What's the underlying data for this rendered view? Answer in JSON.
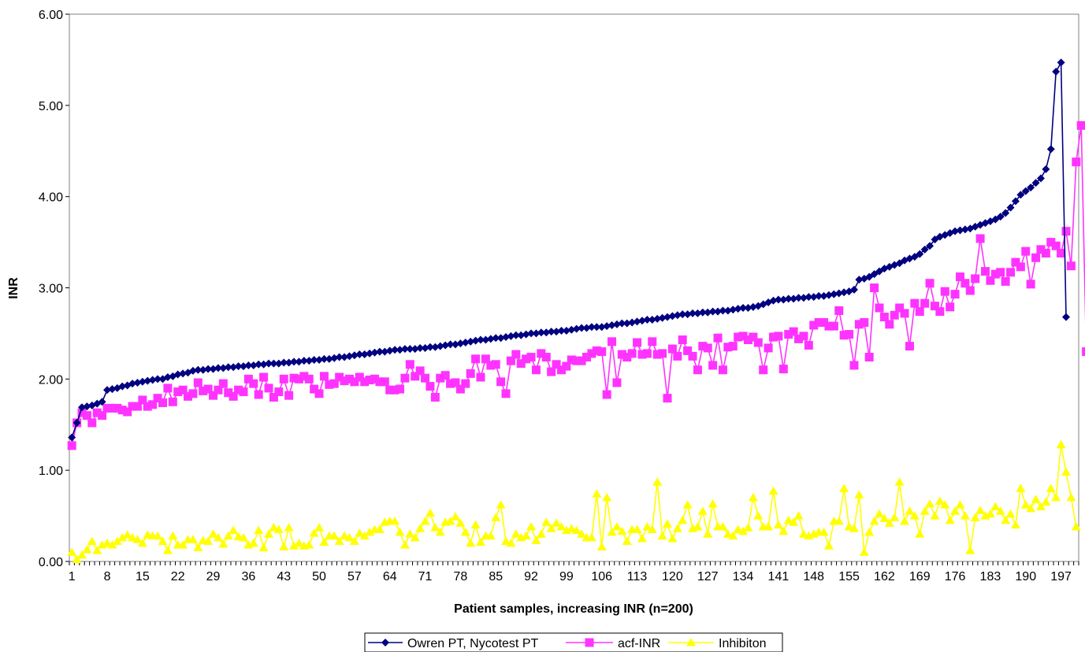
{
  "chart_data": {
    "type": "line",
    "title": "",
    "xlabel": "Patient samples, increasing INR (n=200)",
    "ylabel": "INR",
    "ylim": [
      0,
      6
    ],
    "yticks": [
      "0.00",
      "1.00",
      "2.00",
      "3.00",
      "4.00",
      "5.00",
      "6.00"
    ],
    "xticks": [
      "1",
      "8",
      "15",
      "22",
      "29",
      "36",
      "43",
      "50",
      "57",
      "64",
      "71",
      "78",
      "85",
      "92",
      "99",
      "106",
      "113",
      "120",
      "127",
      "134",
      "141",
      "148",
      "155",
      "162",
      "169",
      "176",
      "183",
      "190",
      "197"
    ],
    "n": 200,
    "grid": false,
    "legend_position": "bottom",
    "series": [
      {
        "name": "Owren PT, Nycotest PT",
        "color": "#000080",
        "marker": "diamond",
        "values": [
          1.36,
          1.52,
          1.69,
          1.7,
          1.71,
          1.73,
          1.75,
          1.88,
          1.89,
          1.9,
          1.92,
          1.93,
          1.95,
          1.96,
          1.97,
          1.98,
          1.99,
          2,
          2,
          2.02,
          2.03,
          2.05,
          2.06,
          2.07,
          2.09,
          2.1,
          2.1,
          2.11,
          2.11,
          2.12,
          2.12,
          2.13,
          2.13,
          2.14,
          2.14,
          2.15,
          2.15,
          2.16,
          2.16,
          2.17,
          2.17,
          2.17,
          2.18,
          2.18,
          2.19,
          2.19,
          2.2,
          2.2,
          2.21,
          2.21,
          2.22,
          2.22,
          2.23,
          2.24,
          2.24,
          2.25,
          2.26,
          2.27,
          2.27,
          2.28,
          2.29,
          2.3,
          2.3,
          2.31,
          2.32,
          2.32,
          2.33,
          2.33,
          2.33,
          2.34,
          2.34,
          2.35,
          2.35,
          2.36,
          2.37,
          2.38,
          2.38,
          2.39,
          2.4,
          2.41,
          2.42,
          2.43,
          2.43,
          2.44,
          2.45,
          2.45,
          2.46,
          2.47,
          2.48,
          2.48,
          2.49,
          2.5,
          2.5,
          2.51,
          2.51,
          2.52,
          2.52,
          2.53,
          2.53,
          2.54,
          2.55,
          2.56,
          2.56,
          2.57,
          2.57,
          2.57,
          2.58,
          2.59,
          2.6,
          2.61,
          2.61,
          2.62,
          2.63,
          2.64,
          2.65,
          2.65,
          2.66,
          2.67,
          2.68,
          2.69,
          2.7,
          2.71,
          2.71,
          2.72,
          2.72,
          2.73,
          2.73,
          2.74,
          2.74,
          2.75,
          2.75,
          2.76,
          2.77,
          2.78,
          2.78,
          2.79,
          2.8,
          2.82,
          2.84,
          2.86,
          2.87,
          2.87,
          2.88,
          2.88,
          2.89,
          2.89,
          2.9,
          2.9,
          2.91,
          2.91,
          2.92,
          2.93,
          2.94,
          2.95,
          2.96,
          2.98,
          3.09,
          3.1,
          3.12,
          3.15,
          3.18,
          3.21,
          3.23,
          3.25,
          3.27,
          3.3,
          3.32,
          3.34,
          3.37,
          3.42,
          3.46,
          3.53,
          3.56,
          3.58,
          3.6,
          3.62,
          3.63,
          3.64,
          3.65,
          3.67,
          3.69,
          3.71,
          3.73,
          3.75,
          3.78,
          3.82,
          3.88,
          3.95,
          4.02,
          4.06,
          4.1,
          4.15,
          4.2,
          4.3,
          4.52,
          5.37,
          5.47,
          2.68
        ]
      },
      {
        "name": "acf-INR",
        "color": "#ff33ff",
        "marker": "square",
        "values": [
          1.27,
          1.52,
          1.63,
          1.6,
          1.52,
          1.63,
          1.6,
          1.68,
          1.68,
          1.68,
          1.66,
          1.64,
          1.7,
          1.7,
          1.77,
          1.7,
          1.72,
          1.79,
          1.74,
          1.9,
          1.75,
          1.86,
          1.88,
          1.81,
          1.84,
          1.96,
          1.87,
          1.89,
          1.82,
          1.88,
          1.95,
          1.85,
          1.81,
          1.88,
          1.86,
          2,
          1.95,
          1.83,
          2.02,
          1.9,
          1.8,
          1.86,
          2,
          1.82,
          2.01,
          2,
          2.03,
          2,
          1.89,
          1.84,
          2.03,
          1.94,
          1.95,
          2.02,
          1.98,
          2,
          1.97,
          2.02,
          1.97,
          1.99,
          2,
          1.97,
          1.97,
          1.88,
          1.88,
          1.89,
          2.01,
          2.16,
          2.03,
          2.09,
          2.01,
          1.92,
          1.8,
          2.01,
          2.04,
          1.95,
          1.96,
          1.89,
          1.95,
          2.06,
          2.22,
          2.02,
          2.22,
          2.15,
          2.16,
          1.97,
          1.84,
          2.2,
          2.27,
          2.17,
          2.22,
          2.24,
          2.1,
          2.28,
          2.24,
          2.08,
          2.16,
          2.1,
          2.14,
          2.21,
          2.2,
          2.2,
          2.24,
          2.28,
          2.31,
          2.3,
          1.83,
          2.41,
          1.96,
          2.27,
          2.24,
          2.28,
          2.4,
          2.27,
          2.28,
          2.41,
          2.27,
          2.28,
          1.79,
          2.33,
          2.25,
          2.43,
          2.31,
          2.25,
          2.1,
          2.36,
          2.34,
          2.15,
          2.45,
          2.1,
          2.35,
          2.36,
          2.46,
          2.47,
          2.43,
          2.46,
          2.4,
          2.1,
          2.34,
          2.46,
          2.47,
          2.11,
          2.49,
          2.52,
          2.44,
          2.47,
          2.37,
          2.59,
          2.62,
          2.62,
          2.58,
          2.58,
          2.75,
          2.48,
          2.49,
          2.15,
          2.6,
          2.62,
          2.24,
          3,
          2.78,
          2.68,
          2.6,
          2.7,
          2.78,
          2.72,
          2.36,
          2.83,
          2.74,
          2.83,
          3.05,
          2.8,
          2.74,
          2.96,
          2.79,
          2.93,
          3.12,
          3.05,
          2.97,
          3.1,
          3.54,
          3.18,
          3.08,
          3.15,
          3.17,
          3.07,
          3.17,
          3.28,
          3.23,
          3.4,
          3.04,
          3.33,
          3.42,
          3.38,
          3.5,
          3.46,
          3.38,
          3.62,
          3.24,
          4.38,
          4.78,
          2.3
        ]
      },
      {
        "name": "Inhibiton",
        "color": "#ffff00",
        "marker": "triangle",
        "values": [
          0.1,
          0.02,
          0.07,
          0.13,
          0.22,
          0.12,
          0.18,
          0.2,
          0.18,
          0.22,
          0.26,
          0.29,
          0.26,
          0.24,
          0.2,
          0.29,
          0.28,
          0.28,
          0.22,
          0.12,
          0.28,
          0.18,
          0.18,
          0.24,
          0.24,
          0.15,
          0.23,
          0.22,
          0.3,
          0.26,
          0.19,
          0.28,
          0.34,
          0.27,
          0.26,
          0.18,
          0.2,
          0.34,
          0.15,
          0.3,
          0.37,
          0.35,
          0.16,
          0.37,
          0.17,
          0.2,
          0.17,
          0.18,
          0.31,
          0.37,
          0.21,
          0.28,
          0.28,
          0.22,
          0.28,
          0.26,
          0.22,
          0.31,
          0.28,
          0.32,
          0.35,
          0.35,
          0.43,
          0.44,
          0.44,
          0.32,
          0.18,
          0.3,
          0.26,
          0.36,
          0.44,
          0.53,
          0.37,
          0.32,
          0.43,
          0.44,
          0.49,
          0.42,
          0.32,
          0.2,
          0.4,
          0.21,
          0.28,
          0.28,
          0.48,
          0.62,
          0.22,
          0.2,
          0.3,
          0.26,
          0.28,
          0.38,
          0.23,
          0.3,
          0.43,
          0.36,
          0.42,
          0.38,
          0.34,
          0.36,
          0.34,
          0.3,
          0.26,
          0.26,
          0.74,
          0.16,
          0.7,
          0.32,
          0.38,
          0.33,
          0.22,
          0.35,
          0.35,
          0.25,
          0.38,
          0.35,
          0.87,
          0.28,
          0.41,
          0.25,
          0.36,
          0.45,
          0.62,
          0.36,
          0.38,
          0.55,
          0.3,
          0.63,
          0.38,
          0.38,
          0.3,
          0.28,
          0.35,
          0.33,
          0.37,
          0.7,
          0.5,
          0.38,
          0.38,
          0.77,
          0.4,
          0.33,
          0.45,
          0.43,
          0.5,
          0.3,
          0.28,
          0.3,
          0.32,
          0.32,
          0.17,
          0.44,
          0.44,
          0.8,
          0.38,
          0.36,
          0.73,
          0.1,
          0.32,
          0.44,
          0.52,
          0.47,
          0.42,
          0.48,
          0.87,
          0.44,
          0.55,
          0.5,
          0.3,
          0.55,
          0.63,
          0.5,
          0.66,
          0.62,
          0.45,
          0.55,
          0.62,
          0.5,
          0.12,
          0.48,
          0.56,
          0.5,
          0.52,
          0.6,
          0.55,
          0.45,
          0.52,
          0.4,
          0.8,
          0.62,
          0.58,
          0.68,
          0.6,
          0.65,
          0.8,
          0.7,
          1.28,
          0.98,
          0.7,
          0.38
        ]
      }
    ]
  }
}
